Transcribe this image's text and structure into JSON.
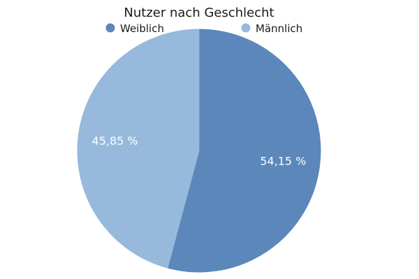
{
  "chart_data": {
    "type": "pie",
    "title": "Nutzer nach Geschlecht",
    "legend_position": "top",
    "slices": [
      {
        "name": "Weiblich",
        "value": 54.15,
        "label": "54,15 %",
        "color": "#5b87ba"
      },
      {
        "name": "Männlich",
        "value": 45.85,
        "label": "45,85 %",
        "color": "#96b9dc"
      }
    ],
    "start_angle_direction": "clockwise from 12 o'clock"
  }
}
